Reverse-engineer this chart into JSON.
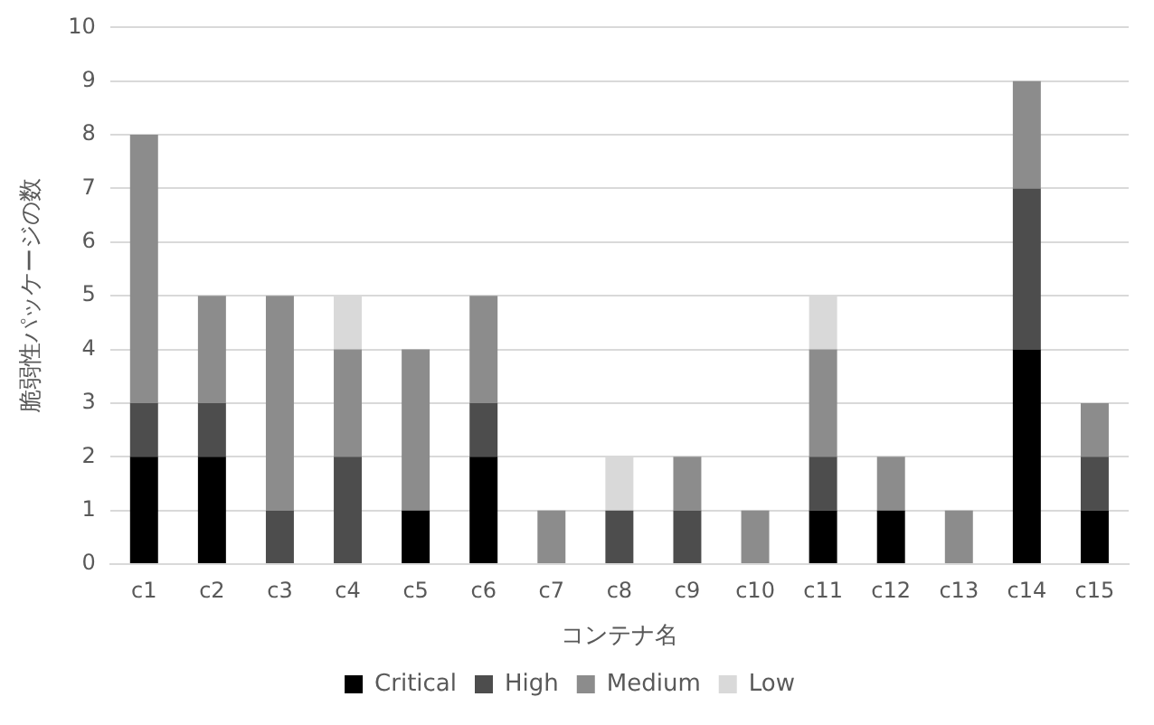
{
  "chart_data": {
    "type": "bar",
    "stacked": true,
    "xlabel": "コンテナ名",
    "ylabel": "脆弱性パッケージの数",
    "categories": [
      "c1",
      "c2",
      "c3",
      "c4",
      "c5",
      "c6",
      "c7",
      "c8",
      "c9",
      "c10",
      "c11",
      "c12",
      "c13",
      "c14",
      "c15"
    ],
    "series": [
      {
        "name": "Critical",
        "color": "#000000",
        "values": [
          2,
          2,
          0,
          0,
          1,
          2,
          0,
          0,
          0,
          0,
          1,
          1,
          0,
          4,
          1
        ]
      },
      {
        "name": "High",
        "color": "#4d4d4d",
        "values": [
          1,
          1,
          1,
          2,
          0,
          1,
          0,
          1,
          1,
          0,
          1,
          0,
          0,
          3,
          1
        ]
      },
      {
        "name": "Medium",
        "color": "#8c8c8c",
        "values": [
          5,
          2,
          4,
          2,
          3,
          2,
          1,
          0,
          1,
          1,
          2,
          1,
          1,
          2,
          1
        ]
      },
      {
        "name": "Low",
        "color": "#d9d9d9",
        "values": [
          0,
          0,
          0,
          1,
          0,
          0,
          0,
          1,
          0,
          0,
          1,
          0,
          0,
          0,
          0
        ]
      }
    ],
    "ylim": [
      0,
      10
    ],
    "yticks": [
      0,
      1,
      2,
      3,
      4,
      5,
      6,
      7,
      8,
      9,
      10
    ],
    "grid": "y",
    "legend": "bottom"
  }
}
